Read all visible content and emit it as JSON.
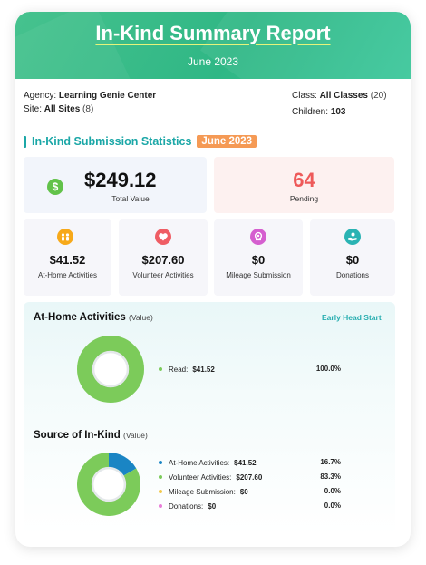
{
  "header": {
    "title": "In-Kind Summary Report",
    "period": "June 2023",
    "colors": {
      "gradient_start": "#46c28e",
      "gradient_end": "#3cc79b",
      "title_underline": "#e6f47a"
    }
  },
  "info": {
    "agency_label": "Agency:",
    "agency_value": "Learning Genie Center",
    "site_label": "Site:",
    "site_value": "All Sites",
    "site_count": "(8)",
    "class_label": "Class:",
    "class_value": "All Classes",
    "class_count": "(20)",
    "children_label": "Children:",
    "children_value": "103"
  },
  "stats": {
    "section_title": "In-Kind Submission Statistics",
    "period_badge": "June 2023",
    "total_value": "$249.12",
    "total_label": "Total Value",
    "total_icon": "dollar-icon",
    "pending_value": "64",
    "pending_label": "Pending",
    "pending_color": "#ee5a5a",
    "cards": [
      {
        "value": "$41.52",
        "label": "At-Home Activities",
        "icon": "family-icon",
        "color": "#f7a91a"
      },
      {
        "value": "$207.60",
        "label": "Volunteer Activities",
        "icon": "heart-icon",
        "color": "#ef5d64"
      },
      {
        "value": "$0",
        "label": "Mileage Submission",
        "icon": "location-pin-icon",
        "color": "#d55fcf"
      },
      {
        "value": "$0",
        "label": "Donations",
        "icon": "hand-gift-icon",
        "color": "#2ab3b3"
      }
    ]
  },
  "at_home": {
    "title": "At-Home Activities",
    "unit": "(Value)",
    "program_link": "Early Head Start",
    "legend": [
      {
        "label": "Read:",
        "value": "$41.52",
        "percent": "100.0%",
        "color": "#7ccb5a"
      }
    ]
  },
  "source": {
    "title": "Source of In-Kind",
    "unit": "(Value)",
    "legend": [
      {
        "label": "At-Home Activities:",
        "value": "$41.52",
        "percent": "16.7%",
        "color": "#1a85c4"
      },
      {
        "label": "Volunteer Activities:",
        "value": "$207.60",
        "percent": "83.3%",
        "color": "#7ccb5a"
      },
      {
        "label": "Mileage Submission:",
        "value": "$0",
        "percent": "0.0%",
        "color": "#f2c94c"
      },
      {
        "label": "Donations:",
        "value": "$0",
        "percent": "0.0%",
        "color": "#e87dd8"
      }
    ]
  },
  "chart_data": [
    {
      "type": "pie",
      "title": "At-Home Activities",
      "categories": [
        "Read"
      ],
      "values": [
        41.52
      ],
      "colors": [
        "#7ccb5a"
      ]
    },
    {
      "type": "pie",
      "title": "Source of In-Kind",
      "categories": [
        "At-Home Activities",
        "Volunteer Activities",
        "Mileage Submission",
        "Donations"
      ],
      "values": [
        41.52,
        207.6,
        0,
        0
      ],
      "colors": [
        "#1a85c4",
        "#7ccb5a",
        "#f2c94c",
        "#e87dd8"
      ]
    }
  ]
}
